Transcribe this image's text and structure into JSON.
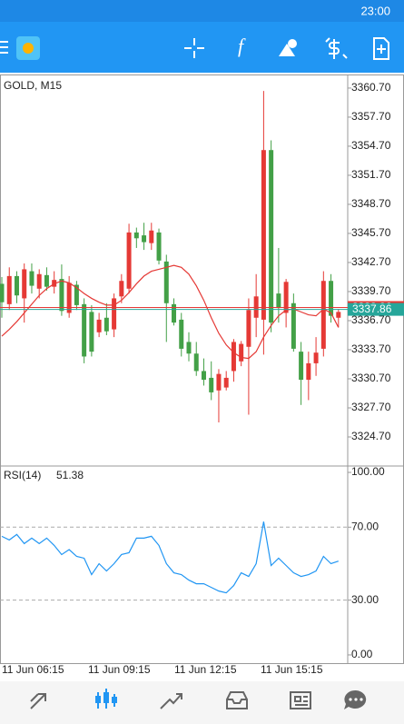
{
  "status_bar": {
    "time": "23:00"
  },
  "chart_data": [
    {
      "type": "candlestick",
      "title": "GOLD, M15",
      "open": [
        3340.5,
        3338.4,
        3341.3,
        3339.0,
        3341.8,
        3340.0,
        3341.4,
        3340.2,
        3341.0,
        3337.5,
        3340.4,
        3338.4,
        3337.6,
        3335.5,
        3337.0,
        3335.8,
        3339.2,
        3340.0,
        3345.8,
        3345.5,
        3344.7,
        3345.8,
        3342.8,
        3338.4,
        3336.8,
        3334.5,
        3333.3,
        3331.5,
        3330.8,
        3329.5,
        3329.8,
        3331.5,
        3332.5,
        3334.0,
        3337.0,
        3336.8,
        3354.3,
        3339.5,
        3337.5,
        3338.5,
        3333.5,
        3330.6,
        3332.3,
        3333.8,
        3340.8,
        3337.0
      ],
      "high": [
        3341.2,
        3342.2,
        3341.8,
        3342.6,
        3342.6,
        3342.0,
        3342.2,
        3341.8,
        3342.5,
        3341.3,
        3340.8,
        3339.0,
        3338.3,
        3337.5,
        3338.5,
        3339.5,
        3341.5,
        3346.7,
        3346.3,
        3346.8,
        3346.8,
        3346.2,
        3343.5,
        3339.0,
        3337.5,
        3335.5,
        3334.5,
        3332.8,
        3332.5,
        3331.7,
        3331.5,
        3334.8,
        3334.6,
        3339.0,
        3341.5,
        3360.4,
        3355.3,
        3344.2,
        3341.0,
        3339.5,
        3334.5,
        3333.5,
        3335.0,
        3341.8,
        3341.5,
        3337.9
      ],
      "low": [
        3337.0,
        3337.8,
        3338.5,
        3336.5,
        3339.5,
        3339.0,
        3339.8,
        3339.5,
        3337.2,
        3337.0,
        3337.8,
        3332.3,
        3333.0,
        3335.0,
        3335.2,
        3335.0,
        3338.5,
        3339.5,
        3344.2,
        3344.0,
        3344.0,
        3342.5,
        3334.5,
        3336.2,
        3333.0,
        3332.5,
        3331.0,
        3330.0,
        3328.5,
        3326.2,
        3329.5,
        3330.4,
        3332.0,
        3327.0,
        3335.0,
        3333.2,
        3335.5,
        3336.5,
        3336.0,
        3333.5,
        3328.0,
        3328.5,
        3331.0,
        3333.0,
        3336.5,
        3336.0
      ],
      "close": [
        3338.6,
        3341.3,
        3339.3,
        3342.0,
        3340.3,
        3341.5,
        3340.2,
        3340.9,
        3337.7,
        3340.6,
        3338.3,
        3333.0,
        3333.5,
        3336.8,
        3335.6,
        3339.0,
        3340.8,
        3345.8,
        3345.2,
        3344.8,
        3346.0,
        3342.9,
        3338.5,
        3336.5,
        3333.8,
        3333.3,
        3331.5,
        3330.6,
        3329.3,
        3331.2,
        3330.8,
        3334.5,
        3334.3,
        3337.8,
        3339.2,
        3354.3,
        3336.5,
        3338.0,
        3340.7,
        3333.8,
        3330.6,
        3332.3,
        3333.4,
        3340.8,
        3337.2,
        3337.6
      ],
      "ma": [
        3335.1,
        3335.8,
        3336.6,
        3337.5,
        3338.4,
        3339.3,
        3340.0,
        3340.5,
        3340.8,
        3340.6,
        3340.1,
        3339.5,
        3339.0,
        3338.6,
        3338.3,
        3338.3,
        3338.8,
        3339.6,
        3340.5,
        3341.3,
        3341.8,
        3342.0,
        3342.2,
        3342.4,
        3342.2,
        3341.5,
        3340.3,
        3338.8,
        3337.0,
        3335.4,
        3334.2,
        3333.4,
        3332.9,
        3332.8,
        3333.5,
        3335.0,
        3336.2,
        3337.2,
        3337.8,
        3337.9,
        3337.6,
        3337.3,
        3337.2,
        3337.9,
        3337.5,
        3336.0
      ],
      "up_color": "#e53935",
      "down_color": "#43a047",
      "ma_color": "#e53935",
      "ask": 3338.06,
      "bid": 3337.86,
      "ask_color": "#e53935",
      "bid_color": "#26a69a",
      "ylim": [
        3321.7,
        3362.1
      ],
      "yticks": [
        {
          "value": 3360.7,
          "label": "3360.70"
        },
        {
          "value": 3357.7,
          "label": "3357.70"
        },
        {
          "value": 3354.7,
          "label": "3354.70"
        },
        {
          "value": 3351.7,
          "label": "3351.70"
        },
        {
          "value": 3348.7,
          "label": "3348.70"
        },
        {
          "value": 3345.7,
          "label": "3345.70"
        },
        {
          "value": 3342.7,
          "label": "3342.70"
        },
        {
          "value": 3339.7,
          "label": "3339.70"
        },
        {
          "value": 3336.7,
          "label": "3336.70"
        },
        {
          "value": 3333.7,
          "label": "3333.70"
        },
        {
          "value": 3330.7,
          "label": "3330.70"
        },
        {
          "value": 3327.7,
          "label": "3327.70"
        },
        {
          "value": 3324.7,
          "label": "3324.70"
        }
      ],
      "x_labels": [
        "11 Jun 06:15",
        "11 Jun 09:15",
        "11 Jun 12:15",
        "11 Jun 15:15"
      ]
    },
    {
      "type": "line",
      "title": "RSI(14)",
      "current": 51.38,
      "color": "#2196f3",
      "values": [
        65,
        63,
        66,
        61,
        64,
        61,
        64,
        60,
        55,
        57.7,
        54,
        53,
        44,
        50,
        46,
        50,
        55,
        56,
        64,
        64,
        65,
        60,
        50,
        45,
        44,
        41,
        39,
        39,
        37,
        35,
        34,
        38,
        45,
        43,
        50,
        73,
        49,
        53,
        49,
        45,
        43,
        44,
        46,
        54,
        50,
        51.38
      ],
      "levels": [
        70,
        30
      ],
      "ylim": [
        -4.5,
        103.5
      ],
      "yticks": [
        {
          "value": 100,
          "label": "100.00"
        },
        {
          "value": 70,
          "label": "70.00"
        },
        {
          "value": 30,
          "label": "30.00"
        },
        {
          "value": 0,
          "label": "0.00"
        }
      ]
    }
  ]
}
